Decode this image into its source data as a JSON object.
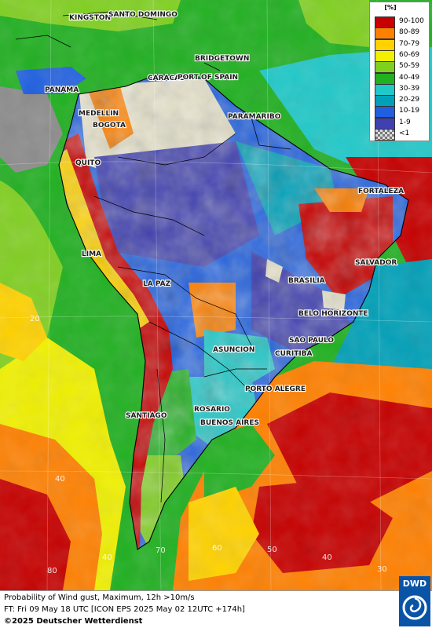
{
  "title": "Probability of Wind gust, Maximum, 12h >10m/s",
  "forecast_line": "FT: Fri 09 May 18 UTC [ICON EPS 2025 May 02 12UTC +174h]",
  "copyright": "©2025 Deutscher Wetterdienst",
  "logo_text": "DWD",
  "legend": {
    "unit": "[%]",
    "items": [
      {
        "label": "90-100",
        "color": "#c60000"
      },
      {
        "label": "80-89",
        "color": "#ff8000"
      },
      {
        "label": "70-79",
        "color": "#ffd200"
      },
      {
        "label": "60-69",
        "color": "#f0f000"
      },
      {
        "label": "50-59",
        "color": "#80d020"
      },
      {
        "label": "40-49",
        "color": "#20b020"
      },
      {
        "label": "30-39",
        "color": "#20c8c8"
      },
      {
        "label": "20-29",
        "color": "#00a0b8"
      },
      {
        "label": "10-19",
        "color": "#2060e0"
      },
      {
        "label": "1-9",
        "color": "#4040b0"
      },
      {
        "label": "<1",
        "color": "#a0a0a0"
      }
    ]
  },
  "cities": [
    {
      "name": "KINGSTON"
    },
    {
      "name": "SANTO DOMINGO"
    },
    {
      "name": "BRIDGETOWN"
    },
    {
      "name": "PANAMA"
    },
    {
      "name": "CARACAS"
    },
    {
      "name": "PORT OF SPAIN"
    },
    {
      "name": "MEDELLIN"
    },
    {
      "name": "BOGOTA"
    },
    {
      "name": "PARAMARIBO"
    },
    {
      "name": "QUITO"
    },
    {
      "name": "FORTALEZA"
    },
    {
      "name": "LIMA"
    },
    {
      "name": "SALVADOR"
    },
    {
      "name": "BRASILIA"
    },
    {
      "name": "LA PAZ"
    },
    {
      "name": "BELO HORIZONTE"
    },
    {
      "name": "SAO PAULO"
    },
    {
      "name": "ASUNCION"
    },
    {
      "name": "CURITIBA"
    },
    {
      "name": "PORTO ALEGRE"
    },
    {
      "name": "ROSARIO"
    },
    {
      "name": "BUENOS AIRES"
    },
    {
      "name": "SANTIAGO"
    }
  ],
  "grid_labels": [
    "20",
    "40",
    "60",
    "70",
    "40",
    "50",
    "40",
    "30",
    "80"
  ]
}
